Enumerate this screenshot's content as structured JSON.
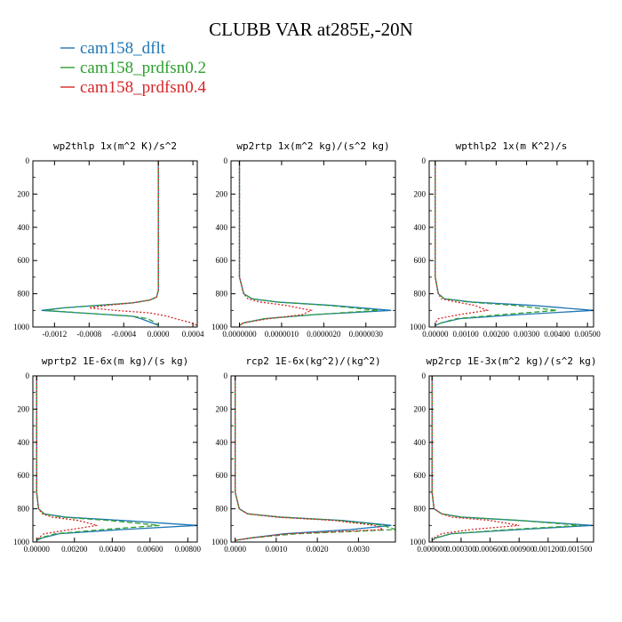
{
  "title": "CLUBB VAR at285E,-20N",
  "legend": [
    {
      "label": "cam158_dflt",
      "color": "#1f77b4",
      "dash": "solid"
    },
    {
      "label": "cam158_prdfsn0.2",
      "color": "#2ca02c",
      "dash": "dashed"
    },
    {
      "label": "cam158_prdfsn0.4",
      "color": "#d62728",
      "dash": "dotted"
    }
  ],
  "chart_data": [
    {
      "type": "line",
      "title": "wp2thlp  1x(m^2 K)/s^2",
      "xlim": [
        -0.00145,
        0.00045
      ],
      "ylim": [
        0,
        1000
      ],
      "y_inverted": true,
      "xticks": [
        -0.0012,
        -0.0008,
        -0.0004,
        0.0,
        0.0004
      ],
      "xtick_labels": [
        "-0.0012",
        "-0.0008",
        "-0.0004",
        "0.0000",
        "0.0004"
      ],
      "yticks": [
        0,
        200,
        400,
        600,
        800,
        1000
      ],
      "ytick_labels": [
        "0",
        "200",
        "400",
        "600",
        "800",
        "1000"
      ],
      "series": [
        {
          "name": "cam158_dflt",
          "x": [
            0.0,
            0.0,
            0.0,
            0.0,
            -2e-05,
            -0.0001,
            -0.0003,
            -0.0007,
            -0.0011,
            -0.00135,
            -0.0009,
            -0.0003,
            -0.0002,
            -0.0001,
            0.0
          ],
          "y": [
            0,
            200,
            500,
            780,
            820,
            838,
            855,
            870,
            885,
            900,
            915,
            935,
            950,
            970,
            990
          ]
        },
        {
          "name": "cam158_prdfsn0.2",
          "x": [
            0.0,
            0.0,
            0.0,
            0.0,
            -2e-05,
            -0.0001,
            -0.0003,
            -0.0007,
            -0.0011,
            -0.0013,
            -0.0009,
            -0.0003,
            -0.00012,
            -5e-05,
            0.0
          ],
          "y": [
            0,
            200,
            500,
            780,
            820,
            838,
            855,
            870,
            885,
            900,
            915,
            935,
            950,
            970,
            990
          ]
        },
        {
          "name": "cam158_prdfsn0.4",
          "x": [
            0.0,
            0.0,
            0.0,
            0.0,
            -2e-05,
            -0.0001,
            -0.0003,
            -0.0006,
            -0.0008,
            -0.0005,
            -0.0001,
            0.0001,
            0.0002,
            0.00035,
            0.00045
          ],
          "y": [
            0,
            200,
            500,
            780,
            820,
            838,
            855,
            870,
            885,
            900,
            915,
            935,
            950,
            970,
            990
          ]
        }
      ]
    },
    {
      "type": "line",
      "title": "wp2rtp  1x(m^2 kg)/(s^2 kg)",
      "xlim": [
        -2e-07,
        3.7e-06
      ],
      "ylim": [
        0,
        1000
      ],
      "y_inverted": true,
      "xticks": [
        0.0,
        1e-06,
        2e-06,
        3e-06
      ],
      "xtick_labels": [
        "0.0000000",
        "0.0000010",
        "0.0000020",
        "0.0000030"
      ],
      "yticks": [
        0,
        200,
        400,
        600,
        800,
        1000
      ],
      "ytick_labels": [
        "0",
        "200",
        "400",
        "600",
        "800",
        "1000"
      ],
      "series": [
        {
          "name": "cam158_dflt",
          "x": [
            0.0,
            0.0,
            0.0,
            1e-07,
            3e-07,
            9e-07,
            2.2e-06,
            3.6e-06,
            1.8e-06,
            6e-07,
            1e-07,
            0.0
          ],
          "y": [
            0,
            300,
            700,
            800,
            830,
            850,
            870,
            900,
            925,
            950,
            975,
            990
          ]
        },
        {
          "name": "cam158_prdfsn0.2",
          "x": [
            0.0,
            0.0,
            0.0,
            1e-07,
            3e-07,
            9e-07,
            2.1e-06,
            3.3e-06,
            1.8e-06,
            6e-07,
            1e-07,
            0.0
          ],
          "y": [
            0,
            300,
            700,
            800,
            830,
            850,
            870,
            900,
            925,
            950,
            975,
            990
          ]
        },
        {
          "name": "cam158_prdfsn0.4",
          "x": [
            0.0,
            0.0,
            0.0,
            1e-07,
            2e-07,
            5e-07,
            1.1e-06,
            1.7e-06,
            1.5e-06,
            7e-07,
            1e-07,
            0.0
          ],
          "y": [
            0,
            300,
            700,
            800,
            830,
            850,
            870,
            900,
            925,
            950,
            975,
            990
          ]
        }
      ]
    },
    {
      "type": "line",
      "title": "wpthlp2  1x(m K^2)/s",
      "xlim": [
        -0.0002,
        0.0052
      ],
      "ylim": [
        0,
        1000
      ],
      "y_inverted": true,
      "xticks": [
        0.0,
        0.001,
        0.002,
        0.003,
        0.004,
        0.005
      ],
      "xtick_labels": [
        "0.00000",
        "0.00100",
        "0.00200",
        "0.00300",
        "0.00400",
        "0.00500"
      ],
      "yticks": [
        0,
        200,
        400,
        600,
        800,
        1000
      ],
      "ytick_labels": [
        "0",
        "200",
        "400",
        "600",
        "800",
        "1000"
      ],
      "series": [
        {
          "name": "cam158_dflt",
          "x": [
            0.0,
            0.0,
            0.0,
            0.0001,
            0.0003,
            0.0012,
            0.0032,
            0.0052,
            0.0028,
            0.0008,
            0.0002,
            0.0
          ],
          "y": [
            0,
            300,
            700,
            800,
            830,
            850,
            870,
            900,
            925,
            950,
            975,
            990
          ]
        },
        {
          "name": "cam158_prdfsn0.2",
          "x": [
            0.0,
            0.0,
            0.0,
            0.0001,
            0.0003,
            0.0011,
            0.0026,
            0.004,
            0.0022,
            0.0007,
            0.0002,
            0.0
          ],
          "y": [
            0,
            300,
            700,
            800,
            830,
            850,
            870,
            900,
            925,
            950,
            975,
            990
          ]
        },
        {
          "name": "cam158_prdfsn0.4",
          "x": [
            0.0,
            0.0,
            0.0,
            0.0001,
            0.0002,
            0.0007,
            0.0013,
            0.0017,
            0.0008,
            0.0001,
            0.0,
            0.0
          ],
          "y": [
            0,
            300,
            700,
            800,
            830,
            850,
            870,
            900,
            925,
            950,
            975,
            990
          ]
        }
      ]
    },
    {
      "type": "line",
      "title": "wprtp2  1E-6x(m kg)/(s kg)",
      "xlim": [
        -0.0002,
        0.0085
      ],
      "ylim": [
        0,
        1000
      ],
      "y_inverted": true,
      "xticks": [
        0.0,
        0.002,
        0.004,
        0.006,
        0.008
      ],
      "xtick_labels": [
        "0.00000",
        "0.00200",
        "0.00400",
        "0.00600",
        "0.00800"
      ],
      "yticks": [
        0,
        200,
        400,
        600,
        800,
        1000
      ],
      "ytick_labels": [
        "0",
        "200",
        "400",
        "600",
        "800",
        "1000"
      ],
      "series": [
        {
          "name": "cam158_dflt",
          "x": [
            0.0,
            0.0,
            0.0,
            0.0001,
            0.0004,
            0.0015,
            0.0045,
            0.0085,
            0.0045,
            0.0012,
            0.0003,
            0.0
          ],
          "y": [
            0,
            300,
            700,
            800,
            830,
            850,
            870,
            900,
            925,
            950,
            975,
            990
          ]
        },
        {
          "name": "cam158_prdfsn0.2",
          "x": [
            0.0,
            0.0,
            0.0,
            0.0001,
            0.0004,
            0.0013,
            0.0038,
            0.0065,
            0.0035,
            0.001,
            0.0002,
            0.0
          ],
          "y": [
            0,
            300,
            700,
            800,
            830,
            850,
            870,
            900,
            925,
            950,
            975,
            990
          ]
        },
        {
          "name": "cam158_prdfsn0.4",
          "x": [
            0.0,
            0.0,
            0.0,
            0.0001,
            0.0003,
            0.0008,
            0.0022,
            0.0032,
            0.0018,
            0.0004,
            0.0001,
            0.0
          ],
          "y": [
            0,
            300,
            700,
            800,
            830,
            850,
            870,
            900,
            925,
            950,
            975,
            990
          ]
        }
      ]
    },
    {
      "type": "line",
      "title": "rcp2  1E-6x(kg^2)/(kg^2)",
      "xlim": [
        -0.0001,
        0.0039
      ],
      "ylim": [
        0,
        1000
      ],
      "y_inverted": true,
      "xticks": [
        0.0,
        0.001,
        0.002,
        0.003
      ],
      "xtick_labels": [
        "0.0000",
        "0.0010",
        "0.0020",
        "0.0030"
      ],
      "yticks": [
        0,
        200,
        400,
        600,
        800,
        1000
      ],
      "ytick_labels": [
        "0",
        "200",
        "400",
        "600",
        "800",
        "1000"
      ],
      "series": [
        {
          "name": "cam158_dflt",
          "x": [
            0.0,
            0.0,
            0.0,
            0.0001,
            0.0003,
            0.0011,
            0.0026,
            0.0038,
            0.0028,
            0.0012,
            0.0004,
            0.0
          ],
          "y": [
            0,
            300,
            700,
            800,
            830,
            850,
            870,
            900,
            925,
            950,
            975,
            990
          ]
        },
        {
          "name": "cam158_prdfsn0.2",
          "x": [
            0.0,
            0.0,
            0.0,
            0.0001,
            0.0003,
            0.0011,
            0.0025,
            0.0036,
            0.0039,
            0.0015,
            0.0004,
            0.0
          ],
          "y": [
            0,
            300,
            700,
            800,
            830,
            850,
            870,
            900,
            925,
            950,
            975,
            990
          ]
        },
        {
          "name": "cam158_prdfsn0.4",
          "x": [
            0.0,
            0.0,
            0.0,
            0.0001,
            0.0003,
            0.001,
            0.0024,
            0.0034,
            0.0036,
            0.0013,
            0.0004,
            0.0
          ],
          "y": [
            0,
            300,
            700,
            800,
            830,
            850,
            870,
            900,
            925,
            950,
            975,
            990
          ]
        }
      ]
    },
    {
      "type": "line",
      "title": "wp2rcp  1E-3x(m^2 kg)/(s^2 kg)",
      "xlim": [
        -3e-05,
        0.00167
      ],
      "ylim": [
        0,
        1000
      ],
      "y_inverted": true,
      "xticks": [
        0.0,
        0.0003,
        0.0006,
        0.0009,
        0.0012,
        0.0015
      ],
      "xtick_labels": [
        "0.000000",
        "0.000300",
        "0.000600",
        "0.000900",
        "0.001200",
        "0.001500"
      ],
      "yticks": [
        0,
        200,
        400,
        600,
        800,
        1000
      ],
      "ytick_labels": [
        "0",
        "200",
        "400",
        "600",
        "800",
        "1000"
      ],
      "series": [
        {
          "name": "cam158_dflt",
          "x": [
            0.0,
            0.0,
            0.0,
            2e-05,
            0.0001,
            0.0003,
            0.0009,
            0.00166,
            0.0009,
            0.0002,
            4e-05,
            0.0
          ],
          "y": [
            0,
            300,
            700,
            800,
            830,
            850,
            870,
            900,
            925,
            950,
            975,
            990
          ]
        },
        {
          "name": "cam158_prdfsn0.2",
          "x": [
            0.0,
            0.0,
            0.0,
            2e-05,
            0.0001,
            0.0003,
            0.0009,
            0.00155,
            0.0008,
            0.0002,
            4e-05,
            0.0
          ],
          "y": [
            0,
            300,
            700,
            800,
            830,
            850,
            870,
            900,
            925,
            950,
            975,
            990
          ]
        },
        {
          "name": "cam158_prdfsn0.4",
          "x": [
            0.0,
            0.0,
            0.0,
            2e-05,
            0.0001,
            0.0002,
            0.0006,
            0.0009,
            0.0004,
            0.0001,
            2e-05,
            0.0
          ],
          "y": [
            0,
            300,
            700,
            800,
            830,
            850,
            870,
            900,
            925,
            950,
            975,
            990
          ]
        }
      ]
    }
  ]
}
